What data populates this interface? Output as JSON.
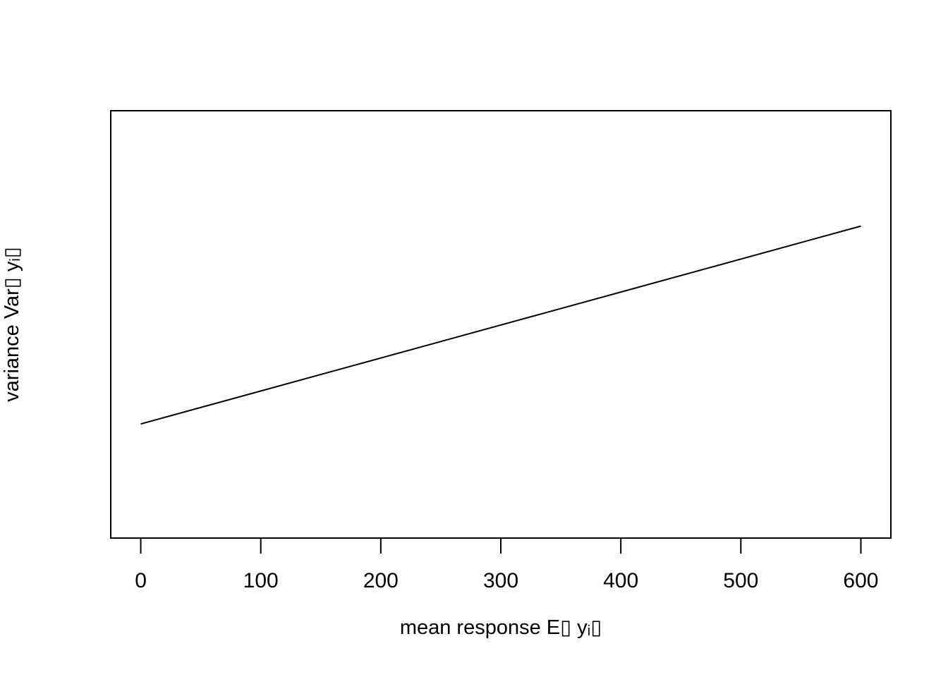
{
  "chart_data": {
    "type": "line",
    "title": "",
    "xlabel": "mean response E▯ yᵢ▯",
    "ylabel": "variance Var▯ yᵢ▯",
    "x_ticks": [
      0,
      100,
      200,
      300,
      400,
      500,
      600
    ],
    "y_ticks": [],
    "xlim": [
      -25,
      625
    ],
    "ylim": [
      0,
      1
    ],
    "grid": false,
    "legend": "none",
    "series": [
      {
        "x": [
          0,
          600
        ],
        "y": [
          0.267,
          0.73
        ],
        "color": "#000000"
      }
    ]
  }
}
